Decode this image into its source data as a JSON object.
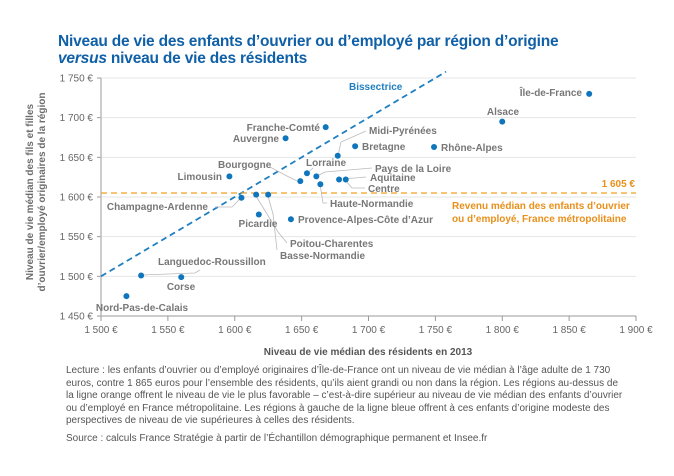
{
  "title": {
    "line1": "Niveau de vie des enfants d’ouvrier ou d’employé par région d’origine",
    "line2_italic": "versus",
    "line2_rest": " niveau de vie des résidents"
  },
  "chart_data": {
    "type": "scatter",
    "xlabel": "Niveau de vie médian des résidents en 2013",
    "ylabel": "Niveau de vie médian des fils et filles d’ouvrier/employé originaires de la région",
    "xlim": [
      1500,
      1900
    ],
    "ylim": [
      1450,
      1750
    ],
    "xticks": [
      "1 500 €",
      "1 550 €",
      "1 600 €",
      "1 650 €",
      "1 700 €",
      "1 750 €",
      "1 800 €",
      "1 850 €",
      "1 900 €"
    ],
    "yticks": [
      "1 450 €",
      "1 500 €",
      "1 550 €",
      "1 600 €",
      "1 650 €",
      "1 700 €",
      "1 750 €"
    ],
    "grid": "horizontal",
    "colors": {
      "points": "#0f75bc",
      "bisectrice": "#1f7fc0",
      "median": "#f0a020",
      "median_text": "#e8901a"
    },
    "bisectrice_label": "Bissectrice",
    "median": {
      "value": 1605,
      "value_label": "1 605 €",
      "label_line1": "Revenu médian des enfants d’ouvrier",
      "label_line2": "ou d’employé, France métropolitaine"
    },
    "points": [
      {
        "name": "Île-de-France",
        "x": 1865,
        "y": 1730
      },
      {
        "name": "Alsace",
        "x": 1800,
        "y": 1695
      },
      {
        "name": "Rhône-Alpes",
        "x": 1749,
        "y": 1663
      },
      {
        "name": "Bretagne",
        "x": 1690,
        "y": 1664
      },
      {
        "name": "Midi-Pyrénées",
        "x": 1677,
        "y": 1652
      },
      {
        "name": "Franche-Comté",
        "x": 1668,
        "y": 1688
      },
      {
        "name": "Auvergne",
        "x": 1638,
        "y": 1674
      },
      {
        "name": "Limousin",
        "x": 1596,
        "y": 1626
      },
      {
        "name": "Bourgogne",
        "x": 1649,
        "y": 1620
      },
      {
        "name": "Lorraine",
        "x": 1654,
        "y": 1630
      },
      {
        "name": "Pays de la Loire",
        "x": 1661,
        "y": 1626
      },
      {
        "name": "Haute-Normandie",
        "x": 1664,
        "y": 1616
      },
      {
        "name": "Aquitaine",
        "x": 1678,
        "y": 1622
      },
      {
        "name": "Centre",
        "x": 1683,
        "y": 1622
      },
      {
        "name": "Champagne-Ardenne",
        "x": 1605,
        "y": 1599
      },
      {
        "name": "Poitou-Charentes",
        "x": 1616,
        "y": 1603
      },
      {
        "name": "Basse-Normandie",
        "x": 1625,
        "y": 1603
      },
      {
        "name": "Picardie",
        "x": 1618,
        "y": 1578
      },
      {
        "name": "Provence-Alpes-Côte d’Azur",
        "x": 1642,
        "y": 1572
      },
      {
        "name": "Languedoc-Roussillon",
        "x": 1530,
        "y": 1501
      },
      {
        "name": "Corse",
        "x": 1560,
        "y": 1499
      },
      {
        "name": "Nord-Pas-de-Calais",
        "x": 1519,
        "y": 1475
      }
    ]
  },
  "note": "Lecture : les enfants d’ouvrier ou d’employé originaires d’Île-de-France ont un niveau de vie médian à l’âge adulte de 1 730 euros, contre 1 865 euros pour l’ensemble des résidents, qu’ils aient grandi ou non dans la région. Les régions au-dessus de la ligne orange offrent le niveau de vie le plus favorable – c’est-à-dire supérieur au niveau de vie médian des enfants d’ouvrier ou d’employé en France métropolitaine. Les régions à gauche de la ligne bleue offrent à ces enfants d’origine modeste des perspectives de niveau de vie supérieures à celles des résidents.",
  "source": "Source : calculs France Stratégie à partir de l’Échantillon démographique permanent et Insee.fr"
}
